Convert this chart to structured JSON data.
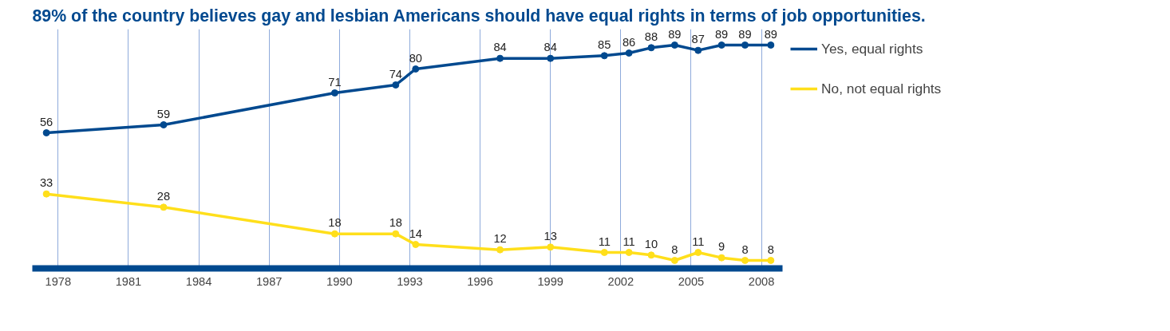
{
  "chart_data": {
    "type": "line",
    "title": "89% of the country believes gay and lesbian Americans should have equal rights in terms of job opportunities.",
    "x": [
      1977.5,
      1982.5,
      1989.8,
      1992.4,
      1993.25,
      1996.85,
      1999,
      2001.3,
      2002.35,
      2003.3,
      2004.3,
      2005.3,
      2006.3,
      2007.3,
      2008.4
    ],
    "series": [
      {
        "name": "Yes, equal rights",
        "color": "#00498f",
        "values": [
          56,
          59,
          71,
          74,
          80,
          84,
          84,
          85,
          86,
          88,
          89,
          87,
          89,
          89,
          89
        ]
      },
      {
        "name": "No, not equal rights",
        "color": "#ffdf1b",
        "values": [
          33,
          28,
          18,
          18,
          14,
          12,
          13,
          11,
          11,
          10,
          8,
          11,
          9,
          8,
          8
        ]
      }
    ],
    "xlim": [
      1976.9,
      2008.9
    ],
    "xticks": [
      1978,
      1981,
      1984,
      1987,
      1990,
      1993,
      1996,
      1999,
      2002,
      2005,
      2008
    ],
    "ylim": [
      5,
      95
    ],
    "tick_labels": "x",
    "grid": "x",
    "legend": "right",
    "marker": "circle",
    "data_labels": true
  }
}
